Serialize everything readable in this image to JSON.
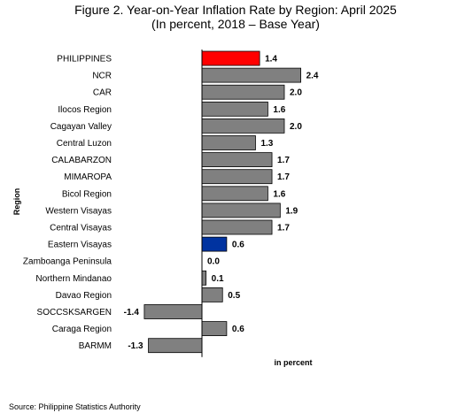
{
  "chart_data": {
    "type": "bar",
    "orientation": "horizontal",
    "title": "Figure 2. Year-on-Year Inflation Rate by Region: April 2025",
    "subtitle": "(In percent, 2018 – Base Year)",
    "xlabel": "in percent",
    "ylabel": "Region",
    "categories": [
      "PHILIPPINES",
      "NCR",
      "CAR",
      "Ilocos Region",
      "Cagayan Valley",
      "Central Luzon",
      "CALABARZON",
      "MIMAROPA",
      "Bicol Region",
      "Western Visayas",
      "Central Visayas",
      "Eastern Visayas",
      "Zamboanga Peninsula",
      "Northern Mindanao",
      "Davao Region",
      "SOCCSKSARGEN",
      "Caraga Region",
      "BARMM"
    ],
    "values": [
      1.4,
      2.4,
      2.0,
      1.6,
      2.0,
      1.3,
      1.7,
      1.7,
      1.6,
      1.9,
      1.7,
      0.6,
      0.0,
      0.1,
      0.5,
      -1.4,
      0.6,
      -1.3
    ],
    "value_labels": [
      "1.4",
      "2.4",
      "2.0",
      "1.6",
      "2.0",
      "1.3",
      "1.7",
      "1.7",
      "1.6",
      "1.9",
      "1.7",
      "0.6",
      "0.0",
      "0.1",
      "0.5",
      "-1.4",
      "0.6",
      "-1.3"
    ],
    "bar_colors": [
      "#ff0000",
      "#808080",
      "#808080",
      "#808080",
      "#808080",
      "#808080",
      "#808080",
      "#808080",
      "#808080",
      "#808080",
      "#808080",
      "#0033a0",
      "#808080",
      "#808080",
      "#808080",
      "#808080",
      "#808080",
      "#808080"
    ],
    "xlim": [
      -1.4,
      2.4
    ],
    "grid": false,
    "legend": "none"
  },
  "source": "Source: Philippine Statistics Authority"
}
